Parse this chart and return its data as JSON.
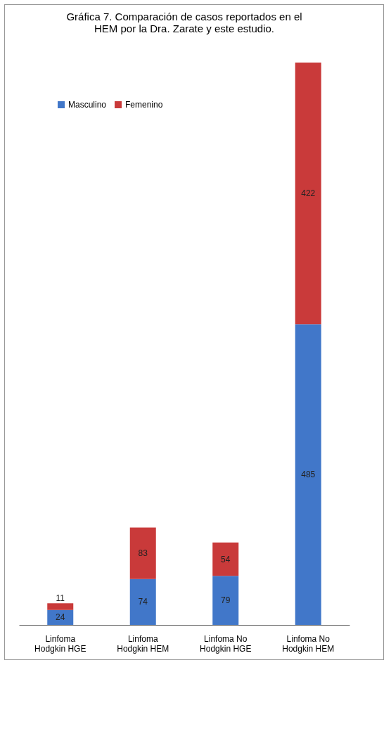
{
  "chart_data": {
    "type": "bar",
    "title": "Gráfica 7. Comparación de casos reportados en el HEM por la Dra. Zarate y este estudio.",
    "categories": [
      "Linfoma Hodgkin HGE",
      "Linfoma Hodgkin HEM",
      "Linfoma No Hodgkin HGE",
      "Linfoma No Hodgkin HEM"
    ],
    "stacked": true,
    "data_labels": true,
    "legend": "top left",
    "grid": false,
    "series": [
      {
        "name": "Masculino",
        "color": "#4177c9",
        "values": [
          24,
          74,
          79,
          485
        ]
      },
      {
        "name": "Femenino",
        "color": "#c93a3a",
        "values": [
          11,
          83,
          54,
          422
        ]
      }
    ]
  }
}
